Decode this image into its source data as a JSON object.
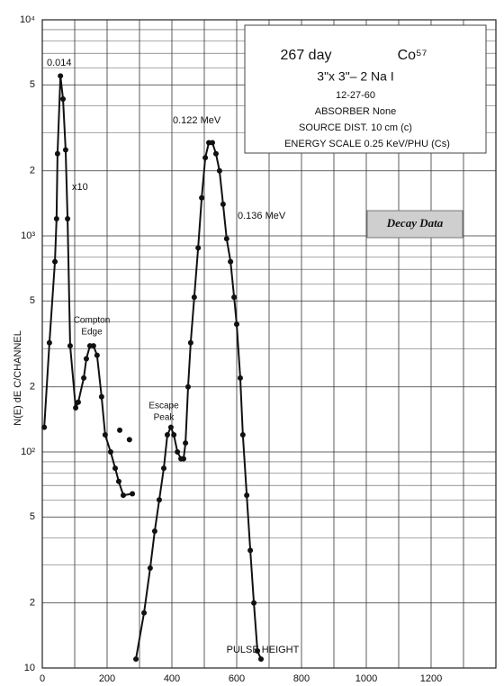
{
  "chart_data": {
    "type": "line",
    "log_y": true,
    "grid": true,
    "title_lines": [
      "267 day",
      "Co⁵⁷",
      "3\"x 3\"– 2 Na I",
      "12-27-60",
      "ABSORBER None",
      "SOURCE DIST. 10 cm (c)",
      "ENERGY SCALE 0.25 KeV/PHU (Cs)"
    ],
    "ylabel": "N(E)  dE  C/CHANNEL",
    "xlabel": "PULSE HEIGHT",
    "annotations": {
      "peak_low": "0.014",
      "scale": "x10",
      "compton": [
        "Compton",
        "Edge"
      ],
      "escape": [
        "Escape",
        "Peak"
      ],
      "peak_main": "0.122 MeV",
      "peak_second": "0.136 MeV"
    },
    "button": "Decay Data",
    "xlim": [
      0,
      1400
    ],
    "ylim": [
      10,
      10000
    ],
    "xticks": [
      0,
      200,
      400,
      600,
      800,
      1000,
      1200
    ],
    "xgrid": [
      100,
      300,
      500,
      700,
      900,
      1100,
      1300,
      1400
    ],
    "yticks": [
      {
        "value": 10000,
        "label": "10⁴"
      },
      {
        "value": 5000,
        "label": "5"
      },
      {
        "value": 2000,
        "label": "2"
      },
      {
        "value": 1000,
        "label": "10³"
      },
      {
        "value": 500,
        "label": "5"
      },
      {
        "value": 200,
        "label": "2"
      },
      {
        "value": 100,
        "label": "10²"
      },
      {
        "value": 50,
        "label": "5"
      },
      {
        "value": 20,
        "label": "2"
      },
      10
    ],
    "yminor": [
      30,
      40,
      60,
      70,
      80,
      90,
      300,
      400,
      600,
      700,
      800,
      900,
      3000,
      4000,
      6000,
      7000,
      8000,
      9000
    ],
    "series": [
      {
        "color": "#111",
        "line": true,
        "x": [
          6,
          22,
          39,
          44,
          47,
          56,
          64,
          72,
          78,
          86,
          103,
          111,
          128,
          136,
          147,
          158,
          169,
          183,
          194,
          211,
          225,
          236,
          250,
          278
        ],
        "values": [
          130,
          320,
          760,
          1200,
          2400,
          5500,
          4300,
          2500,
          1200,
          310,
          160,
          170,
          220,
          270,
          310,
          310,
          280,
          180,
          120,
          100,
          84,
          73,
          63,
          64
        ]
      },
      {
        "color": "#111",
        "line": true,
        "x": [
          289,
          314,
          333,
          347,
          361,
          375,
          386,
          397,
          406,
          417,
          428,
          436,
          442,
          450,
          458,
          469,
          481,
          492,
          503,
          514,
          525,
          536,
          547,
          558,
          569,
          581,
          592,
          600,
          611,
          619,
          631,
          642,
          653,
          664,
          675
        ],
        "values": [
          11,
          18,
          29,
          43,
          60,
          84,
          120,
          130,
          120,
          100,
          93,
          93,
          110,
          200,
          320,
          520,
          880,
          1500,
          2300,
          2700,
          2700,
          2400,
          2000,
          1400,
          970,
          760,
          520,
          390,
          220,
          120,
          63,
          35,
          20,
          12,
          11
        ]
      },
      {
        "color": "#111",
        "line": false,
        "x": [
          239,
          269
        ],
        "values": [
          126,
          114
        ]
      }
    ]
  }
}
